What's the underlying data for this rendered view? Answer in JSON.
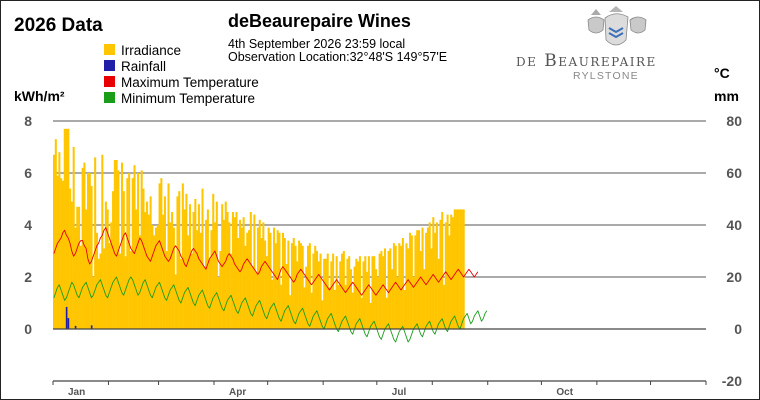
{
  "header": {
    "year_title": "2026 Data",
    "station_title": "deBeaurepaire Wines",
    "date_line": "4th September 2026  23:59 local",
    "location_line": "Observation Location:32°48'S 149°57'E"
  },
  "logo": {
    "name_main": "de Beaurepaire",
    "name_sub": "RYLSTONE"
  },
  "colors": {
    "irradiance": "#FFC600",
    "rainfall": "#1F1FA8",
    "max_temp": "#E80000",
    "min_temp": "#1A9E1A",
    "grid": "#555555",
    "tick_text": "#555555"
  },
  "chart_data": {
    "type": "bar",
    "title": "2026 Data",
    "xlabel": "",
    "left_axis": {
      "label": "kWh/m²",
      "ylim": [
        0,
        8
      ],
      "ticks": [
        "8",
        "6",
        "4",
        "2",
        "0"
      ]
    },
    "right_axis": {
      "label_top": "°C",
      "label_bottom": "mm",
      "ylim": [
        -20,
        80
      ],
      "ticks": [
        "80",
        "60",
        "40",
        "20",
        "0",
        "-20"
      ]
    },
    "months": [
      "Jan",
      "Apr",
      "Jul",
      "Oct"
    ],
    "x_domain": [
      "2026-01-01",
      "2026-12-31"
    ],
    "grid": "horizontal",
    "legend_position": "top-left",
    "series": [
      {
        "name": "Irradiance",
        "axis": "left",
        "kind": "bar",
        "start_date": "2026-01-01",
        "values": [
          6.7,
          7.3,
          5.9,
          6.8,
          5.8,
          5.7,
          7.7,
          7.7,
          7.7,
          5.4,
          4.9,
          7.0,
          3.9,
          4.7,
          4.7,
          3.2,
          6.2,
          6.4,
          4.6,
          6.0,
          6.0,
          5.5,
          2.0,
          6.6,
          3.7,
          2.7,
          2.9,
          6.7,
          3.1,
          4.9,
          4.6,
          3.3,
          4.1,
          5.3,
          6.5,
          6.5,
          6.1,
          2.9,
          6.4,
          5.3,
          2.8,
          5.8,
          6.0,
          3.0,
          5.8,
          6.3,
          4.6,
          6.0,
          3.6,
          6.1,
          5.4,
          4.5,
          4.9,
          4.4,
          5.1,
          4.0,
          3.6,
          3.9,
          4.0,
          5.6,
          5.8,
          4.4,
          5.1,
          3.0,
          5.6,
          4.1,
          4.5,
          3.9,
          2.1,
          5.1,
          5.3,
          2.7,
          5.6,
          4.6,
          5.2,
          3.6,
          4.8,
          2.9,
          4.5,
          5.0,
          3.8,
          4.8,
          3.7,
          5.4,
          2.4,
          4.2,
          4.6,
          2.7,
          3.8,
          5.2,
          4.1,
          4.9,
          2.0,
          3.0,
          4.8,
          4.2,
          4.9,
          4.5,
          4.1,
          2.9,
          4.5,
          4.3,
          4.5,
          3.5,
          4.2,
          3.9,
          4.3,
          3.2,
          3.7,
          3.8,
          4.5,
          2.4,
          4.4,
          2.2,
          3.9,
          4.2,
          3.5,
          4.1,
          3.4,
          2.8,
          3.9,
          3.7,
          1.9,
          3.9,
          3.3,
          3.8,
          3.7,
          1.7,
          3.7,
          3.5,
          2.5,
          3.4,
          1.3,
          3.3,
          3.5,
          3.2,
          2.6,
          3.4,
          3.3,
          3.2,
          1.6,
          2.4,
          3.2,
          3.3,
          1.4,
          2.9,
          3.2,
          3.0,
          2.6,
          2.9,
          1.1,
          2.7,
          2.7,
          2.9,
          1.6,
          2.6,
          2.9,
          1.5,
          2.8,
          1.7,
          2.6,
          2.9,
          3.0,
          1.7,
          2.7,
          2.8,
          2.3,
          1.4,
          2.4,
          2.7,
          2.6,
          2.8,
          1.2,
          2.6,
          2.8,
          2.2,
          2.8,
          1.0,
          2.8,
          2.8,
          2.3,
          2.0,
          2.9,
          3.0,
          2.8,
          3.1,
          1.2,
          3.0,
          3.1,
          2.3,
          3.3,
          3.2,
          2.0,
          3.3,
          3.2,
          3.5,
          1.5,
          3.3,
          3.1,
          3.7,
          3.6,
          2.0,
          3.6,
          3.8,
          3.8,
          3.0,
          3.9,
          2.3,
          3.7,
          3.9,
          4.1,
          3.1,
          4.3,
          3.7,
          4.1,
          2.7,
          4.2,
          4.5,
          1.7,
          4.1,
          4.4,
          3.6,
          4.4,
          4.3,
          4.6,
          4.6,
          4.6,
          4.6,
          4.6,
          4.6
        ]
      },
      {
        "name": "Rainfall",
        "axis": "right",
        "kind": "bar",
        "start_date": "2026-01-01",
        "values": [
          0,
          0,
          0,
          0,
          0,
          0,
          0,
          8.5,
          4.2,
          0,
          0,
          0,
          1.2,
          0,
          0,
          0,
          0,
          0,
          0,
          0,
          0,
          1.4,
          0,
          0,
          0,
          0,
          0,
          0,
          0,
          0,
          0,
          0,
          0,
          0,
          0,
          0,
          0,
          0,
          0,
          0,
          0,
          0,
          0,
          0,
          0,
          0,
          0,
          0,
          0,
          0,
          0,
          0,
          0,
          0,
          0,
          0,
          0,
          0,
          0,
          0,
          0,
          0,
          0,
          0,
          0,
          0,
          0,
          0,
          0,
          0,
          0,
          0,
          0,
          0,
          0,
          0,
          0,
          0,
          0,
          0,
          0,
          0,
          0,
          0,
          0,
          0,
          0,
          0,
          0,
          0,
          0,
          0,
          0,
          0,
          0,
          0,
          0,
          0,
          0,
          0,
          0,
          0,
          0,
          0,
          0,
          0,
          0,
          0,
          0,
          0,
          0,
          0,
          0,
          0,
          0,
          0,
          0,
          0,
          0,
          0,
          0,
          0,
          0,
          0,
          0,
          0,
          0,
          0,
          0,
          0,
          0,
          0,
          0,
          0,
          0,
          0,
          0,
          0,
          0,
          0,
          0,
          0,
          0,
          0,
          0,
          0,
          0,
          0,
          0,
          0,
          0,
          0,
          0,
          0,
          0,
          0,
          0,
          0,
          0,
          0,
          0,
          0,
          0,
          0,
          0,
          0,
          0,
          0,
          0,
          0,
          0,
          0,
          0,
          0,
          0,
          0,
          0,
          0,
          0,
          0,
          0,
          0,
          0,
          0,
          0,
          0,
          0,
          0,
          0,
          0,
          0,
          0,
          0,
          0,
          0,
          0,
          0,
          0,
          0,
          0,
          0,
          0,
          0,
          0,
          0,
          0,
          0,
          0,
          0,
          0,
          0,
          0,
          0,
          0,
          0,
          0,
          0,
          0,
          0,
          0,
          0,
          0,
          0,
          0,
          0,
          0,
          0,
          0,
          0,
          0,
          0,
          0,
          0,
          0,
          0,
          0,
          0,
          0,
          0,
          0,
          0,
          0,
          0,
          0
        ]
      },
      {
        "name": "Maximum Temperature",
        "axis": "right",
        "kind": "line",
        "start_date": "2026-01-01",
        "values": [
          29,
          31,
          33,
          34,
          35,
          37,
          38,
          36,
          35,
          33,
          30,
          28,
          29,
          31,
          33,
          34,
          34,
          32,
          31,
          27,
          25,
          26,
          28,
          30,
          32,
          33,
          35,
          36,
          38,
          39,
          37,
          35,
          33,
          31,
          29,
          28,
          30,
          32,
          34,
          36,
          37,
          35,
          33,
          31,
          30,
          29,
          31,
          33,
          35,
          34,
          32,
          30,
          28,
          27,
          26,
          28,
          30,
          32,
          33,
          34,
          32,
          30,
          28,
          27,
          26,
          27,
          29,
          31,
          32,
          31,
          30,
          28,
          27,
          25,
          24,
          26,
          28,
          30,
          31,
          30,
          29,
          27,
          26,
          25,
          24,
          23,
          25,
          27,
          28,
          29,
          30,
          28,
          26,
          25,
          24,
          25,
          26,
          28,
          29,
          28,
          27,
          25,
          24,
          23,
          22,
          23,
          25,
          26,
          27,
          26,
          25,
          24,
          23,
          22,
          21,
          22,
          24,
          25,
          26,
          25,
          24,
          23,
          22,
          21,
          20,
          19,
          21,
          23,
          24,
          23,
          22,
          21,
          20,
          19,
          18,
          19,
          21,
          22,
          23,
          22,
          21,
          20,
          19,
          18,
          17,
          18,
          19,
          20,
          21,
          20,
          19,
          18,
          17,
          16,
          15,
          16,
          17,
          18,
          19,
          18,
          17,
          16,
          15,
          14,
          15,
          16,
          17,
          18,
          17,
          16,
          15,
          14,
          13,
          14,
          15,
          16,
          17,
          16,
          15,
          14,
          13,
          14,
          15,
          16,
          17,
          16,
          15,
          14,
          15,
          16,
          17,
          18,
          17,
          16,
          15,
          16,
          17,
          18,
          19,
          18,
          17,
          16,
          17,
          18,
          19,
          20,
          19,
          18,
          17,
          18,
          19,
          20,
          21,
          20,
          19,
          18,
          19,
          20,
          21,
          22,
          21,
          20,
          19,
          20,
          21,
          22,
          23,
          22,
          21,
          20,
          21,
          22,
          23,
          22,
          21,
          20,
          21,
          22
        ]
      },
      {
        "name": "Minimum Temperature",
        "axis": "right",
        "kind": "line",
        "start_date": "2026-01-01",
        "values": [
          12,
          14,
          16,
          17,
          15,
          13,
          11,
          12,
          14,
          16,
          18,
          17,
          15,
          13,
          12,
          14,
          16,
          17,
          18,
          16,
          14,
          12,
          13,
          15,
          17,
          18,
          19,
          17,
          15,
          13,
          12,
          14,
          16,
          18,
          19,
          20,
          18,
          16,
          14,
          13,
          15,
          17,
          19,
          20,
          19,
          17,
          15,
          13,
          14,
          16,
          18,
          19,
          17,
          15,
          13,
          12,
          14,
          16,
          17,
          18,
          16,
          14,
          12,
          11,
          13,
          15,
          16,
          17,
          15,
          13,
          11,
          10,
          12,
          14,
          15,
          16,
          14,
          12,
          10,
          9,
          11,
          13,
          14,
          15,
          13,
          11,
          9,
          8,
          10,
          12,
          13,
          14,
          12,
          10,
          8,
          7,
          9,
          11,
          12,
          13,
          11,
          9,
          7,
          6,
          8,
          10,
          11,
          12,
          10,
          8,
          6,
          5,
          7,
          9,
          10,
          11,
          9,
          7,
          5,
          4,
          6,
          8,
          9,
          10,
          8,
          6,
          4,
          3,
          5,
          7,
          8,
          9,
          7,
          5,
          3,
          2,
          4,
          6,
          7,
          8,
          6,
          4,
          2,
          1,
          3,
          5,
          6,
          7,
          5,
          3,
          1,
          0,
          2,
          4,
          5,
          6,
          4,
          2,
          0,
          -1,
          1,
          3,
          4,
          5,
          3,
          1,
          -1,
          -2,
          0,
          2,
          3,
          4,
          2,
          0,
          -2,
          -3,
          -1,
          1,
          2,
          3,
          1,
          -1,
          -3,
          -4,
          -2,
          0,
          1,
          2,
          0,
          -2,
          -4,
          -5,
          -3,
          -1,
          0,
          1,
          -1,
          -3,
          -5,
          -4,
          -2,
          0,
          1,
          2,
          0,
          -2,
          -3,
          -1,
          1,
          2,
          3,
          1,
          -1,
          -2,
          0,
          2,
          3,
          4,
          2,
          0,
          -1,
          1,
          3,
          4,
          5,
          3,
          1,
          0,
          2,
          4,
          5,
          6,
          4,
          2,
          3,
          5,
          6,
          7,
          5,
          3,
          4,
          6,
          7
        ]
      }
    ]
  }
}
